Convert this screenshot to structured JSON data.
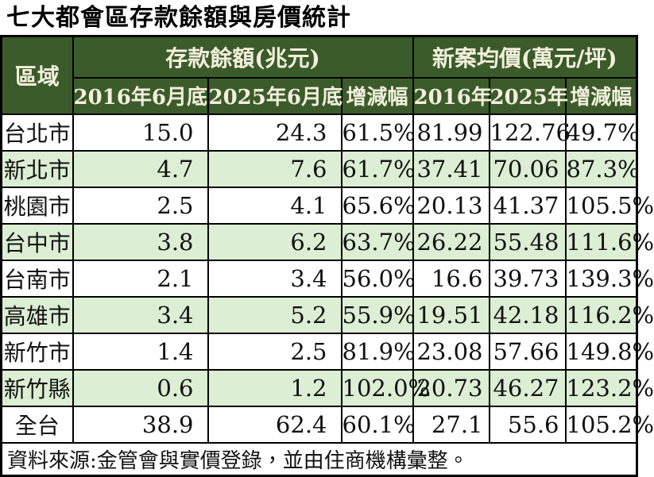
{
  "title": "七大都會區存款餘額與房價統計",
  "colors": {
    "header_bg": "#3c5b2b",
    "header_text": "#f2f0dd",
    "row_alt_bg": "#dceed3",
    "row_bg": "#ffffff",
    "border": "#000000",
    "text": "#111111"
  },
  "table": {
    "region_header": "區域",
    "groups": [
      {
        "label": "存款餘額(兆元)",
        "columns": [
          "2016年6月底",
          "2025年6月底",
          "增減幅"
        ]
      },
      {
        "label": "新案均價(萬元/坪)",
        "columns": [
          "2016年",
          "2025年",
          "增減幅"
        ]
      }
    ],
    "rows": [
      {
        "region": "台北市",
        "values": [
          "15.0",
          "24.3",
          "61.5%",
          "81.99",
          "122.76",
          "49.7%"
        ]
      },
      {
        "region": "新北市",
        "values": [
          "4.7",
          "7.6",
          "61.7%",
          "37.41",
          "70.06",
          "87.3%"
        ]
      },
      {
        "region": "桃園市",
        "values": [
          "2.5",
          "4.1",
          "65.6%",
          "20.13",
          "41.37",
          "105.5%"
        ]
      },
      {
        "region": "台中市",
        "values": [
          "3.8",
          "6.2",
          "63.7%",
          "26.22",
          "55.48",
          "111.6%"
        ]
      },
      {
        "region": "台南市",
        "values": [
          "2.1",
          "3.4",
          "56.0%",
          "16.6",
          "39.73",
          "139.3%"
        ]
      },
      {
        "region": "高雄市",
        "values": [
          "3.4",
          "5.2",
          "55.9%",
          "19.51",
          "42.18",
          "116.2%"
        ]
      },
      {
        "region": "新竹市",
        "values": [
          "1.4",
          "2.5",
          "81.9%",
          "23.08",
          "57.66",
          "149.8%"
        ]
      },
      {
        "region": "新竹縣",
        "values": [
          "0.6",
          "1.2",
          "102.0%",
          "20.73",
          "46.27",
          "123.2%"
        ]
      },
      {
        "region": "全台",
        "values": [
          "38.9",
          "62.4",
          "60.1%",
          "27.1",
          "55.6",
          "105.2%"
        ]
      }
    ]
  },
  "footer": {
    "source_note": "資料來源:金管會與實價登錄，並由住商機構彙整。"
  },
  "chart_data": {
    "type": "table",
    "title": "七大都會區存款餘額與房價統計",
    "column_groups": [
      "存款餘額(兆元)",
      "新案均價(萬元/坪)"
    ],
    "columns": [
      "區域",
      "存款餘額 2016年6月底 (兆元)",
      "存款餘額 2025年6月底 (兆元)",
      "存款餘額 增減幅",
      "新案均價 2016年 (萬元/坪)",
      "新案均價 2025年 (萬元/坪)",
      "新案均價 增減幅"
    ],
    "rows": [
      [
        "台北市",
        15.0,
        24.3,
        "61.5%",
        81.99,
        122.76,
        "49.7%"
      ],
      [
        "新北市",
        4.7,
        7.6,
        "61.7%",
        37.41,
        70.06,
        "87.3%"
      ],
      [
        "桃園市",
        2.5,
        4.1,
        "65.6%",
        20.13,
        41.37,
        "105.5%"
      ],
      [
        "台中市",
        3.8,
        6.2,
        "63.7%",
        26.22,
        55.48,
        "111.6%"
      ],
      [
        "台南市",
        2.1,
        3.4,
        "56.0%",
        16.6,
        39.73,
        "139.3%"
      ],
      [
        "高雄市",
        3.4,
        5.2,
        "55.9%",
        19.51,
        42.18,
        "116.2%"
      ],
      [
        "新竹市",
        1.4,
        2.5,
        "81.9%",
        23.08,
        57.66,
        "149.8%"
      ],
      [
        "新竹縣",
        0.6,
        1.2,
        "102.0%",
        20.73,
        46.27,
        "123.2%"
      ],
      [
        "全台",
        38.9,
        62.4,
        "60.1%",
        27.1,
        55.6,
        "105.2%"
      ]
    ],
    "source": "資料來源:金管會與實價登錄，並由住商機構彙整。"
  }
}
